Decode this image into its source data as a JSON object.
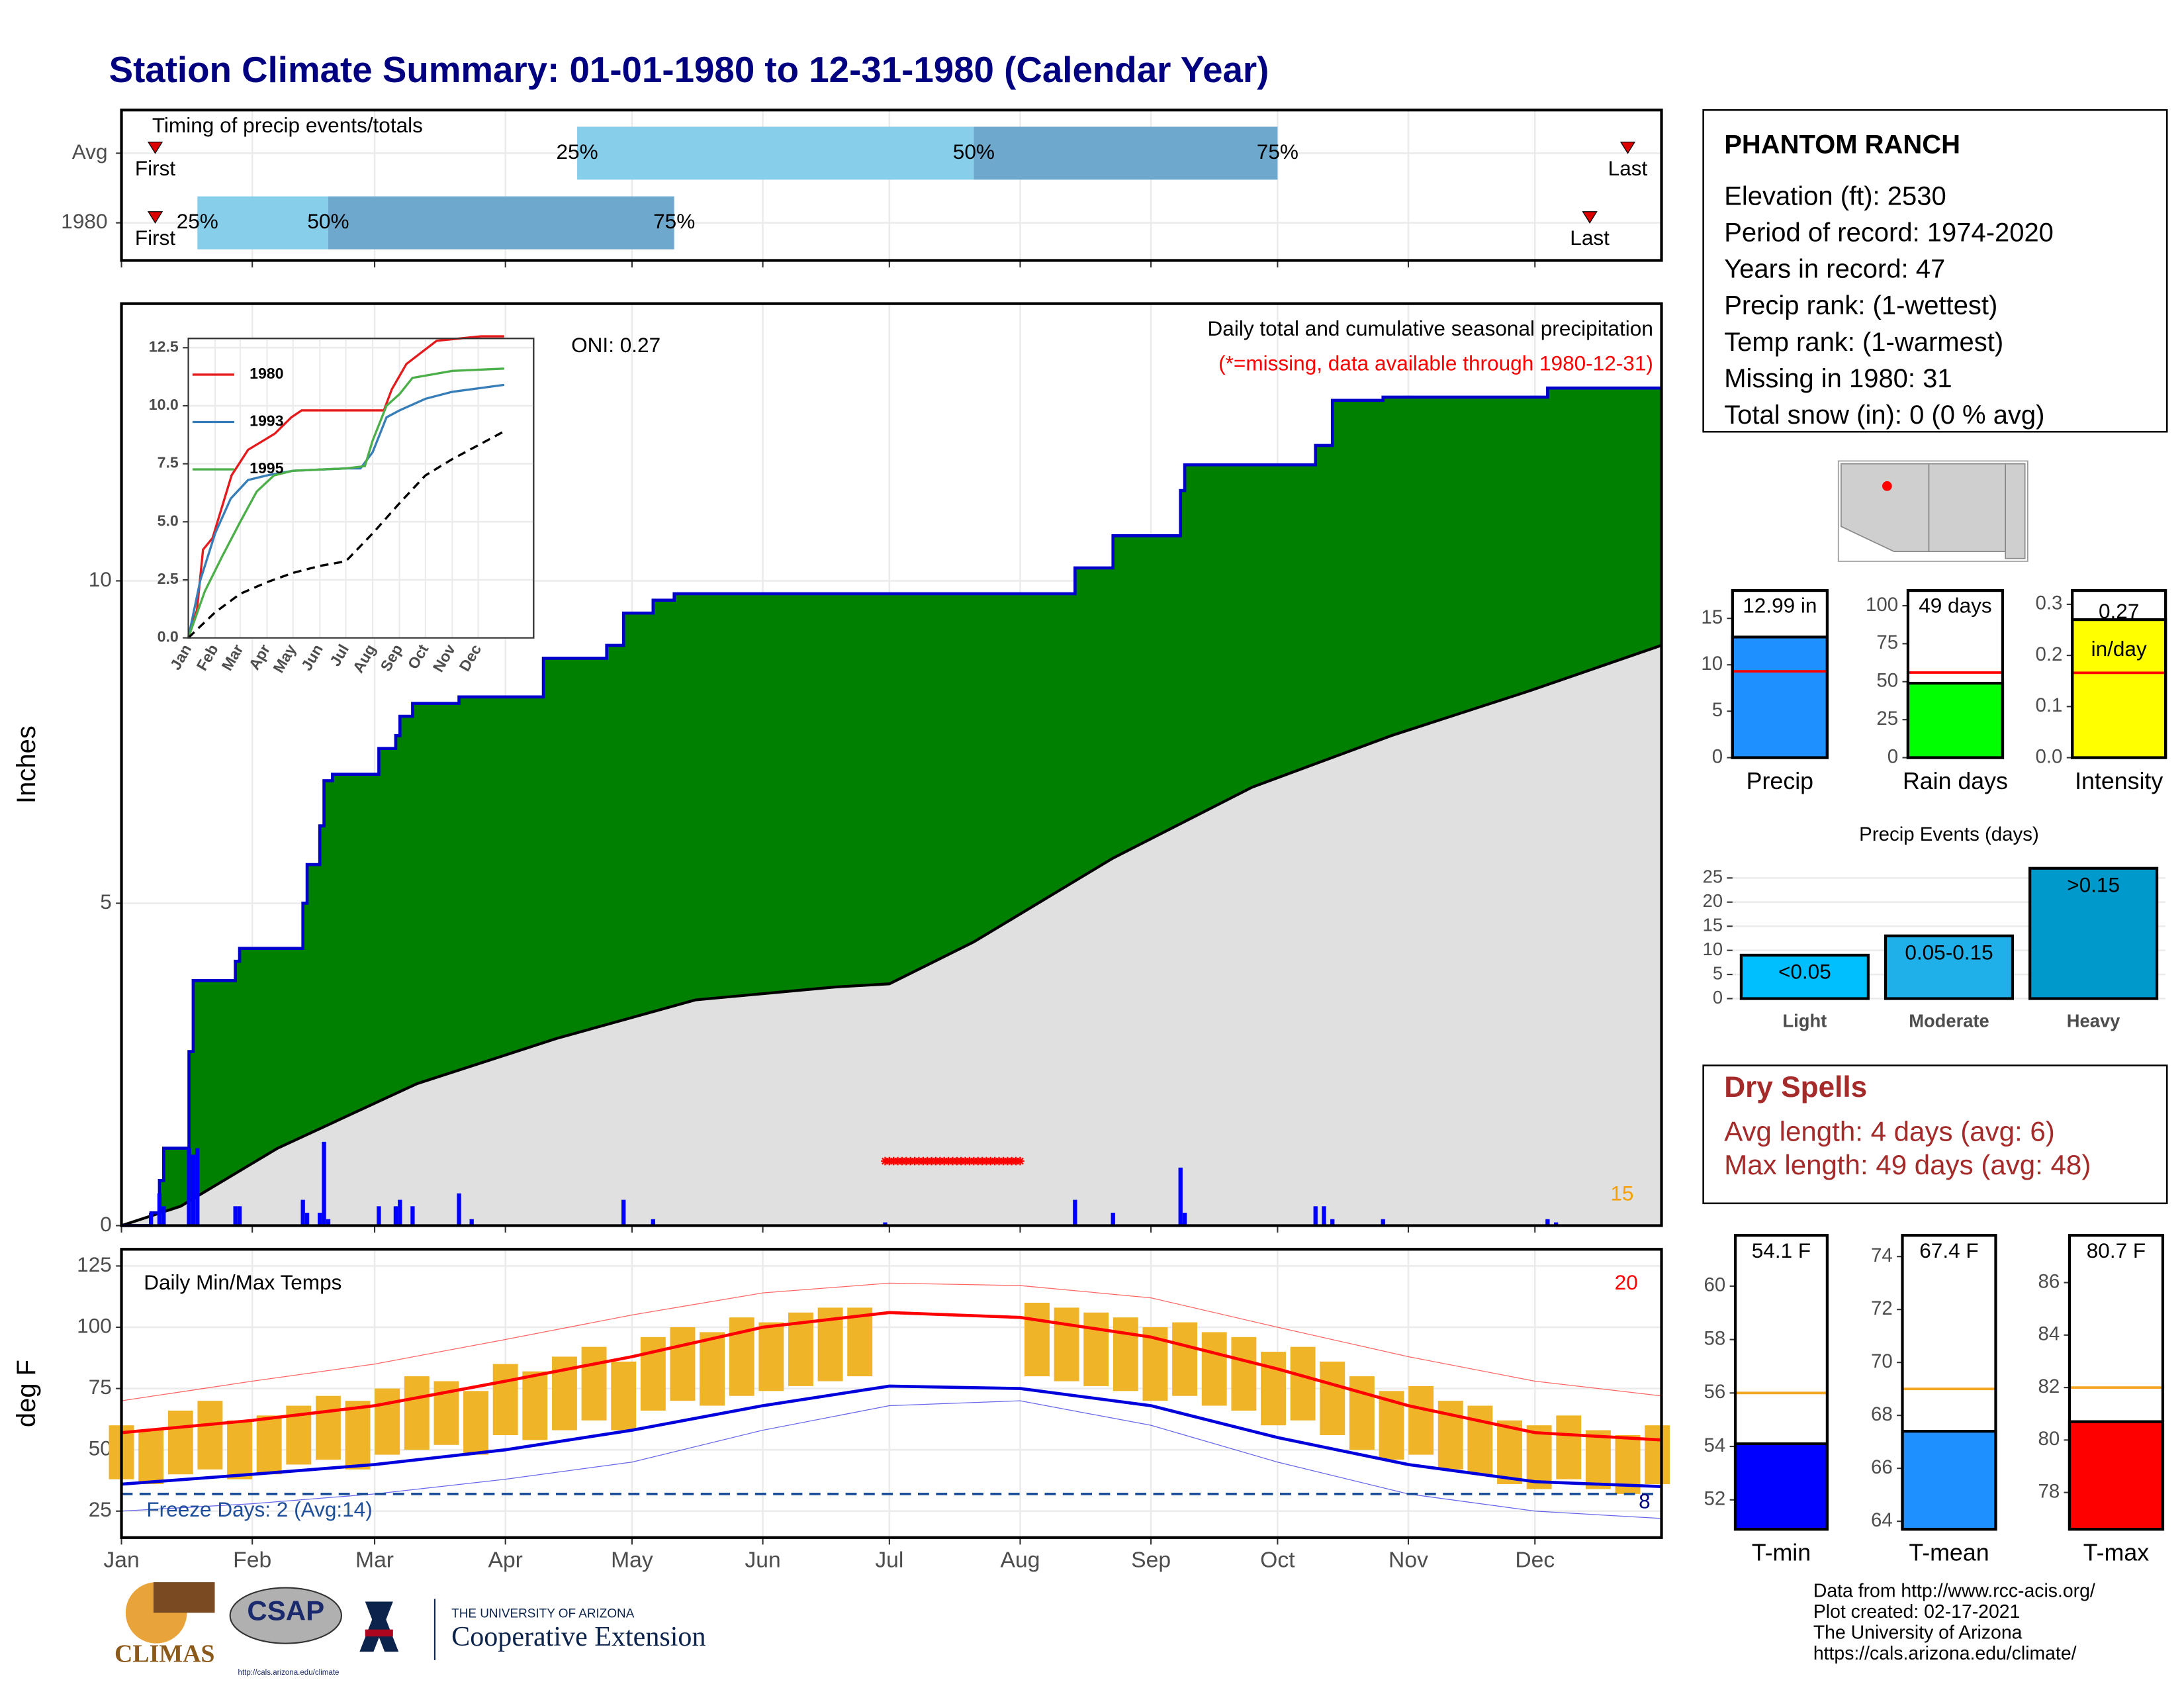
{
  "title": "Station Climate Summary: 01-01-1980 to 12-31-1980 (Calendar Year)",
  "station": {
    "name": "PHANTOM RANCH",
    "lines": [
      "Elevation (ft): 2530",
      "Period of record: 1974-2020",
      "Years in record: 47",
      "Precip rank:  (1-wettest)",
      "Temp rank:  (1-warmest)",
      "Missing in 1980: 31",
      "Total snow (in): 0 (0 % avg)"
    ]
  },
  "dry_spells": {
    "title": "Dry Spells",
    "lines": [
      "Avg length: 4 days (avg: 6)",
      "Max length: 49 days (avg: 48)"
    ]
  },
  "footer": [
    "Data from http://www.rcc-acis.org/",
    "Plot created: 02-17-2021",
    "The University of Arizona",
    "https://cals.arizona.edu/climate/"
  ],
  "logos": {
    "climas": "CLIMAS",
    "csap": "CSAP",
    "csap_url": "http://cals.arizona.edu/climate",
    "ua": "THE UNIVERSITY OF ARIZONA",
    "coop": "Cooperative Extension"
  },
  "chart_data": [
    {
      "type": "timing",
      "title": "Timing of precip events/totals",
      "categories": [
        "Avg",
        "1980"
      ],
      "series": [
        {
          "name": "First",
          "values": [
            9,
            9
          ]
        },
        {
          "name": "25%",
          "values": [
            109,
            19
          ]
        },
        {
          "name": "50%",
          "values": [
            203,
            50
          ]
        },
        {
          "name": "75%",
          "values": [
            275,
            132
          ]
        },
        {
          "name": "Last",
          "values": [
            358,
            349
          ]
        }
      ],
      "colors": [
        "#87ceeb",
        "#6fa8cd"
      ],
      "marker_color": "#dd0000",
      "xlim": [
        1,
        366
      ],
      "grid": true
    },
    {
      "type": "cumulative_precip",
      "title": "Daily total and cumulative seasonal precipitation",
      "subtitle": "(*=missing, data available through 1980-12-31)",
      "annotation": "ONI: 0.27",
      "count_label": "15",
      "ylabel": "Inches",
      "xlim": [
        1,
        366
      ],
      "ylim": [
        0,
        14.3
      ],
      "yticks": [
        0,
        5,
        10
      ],
      "grid": true,
      "cumulative": {
        "color": "#0000cd",
        "fill": "#008000",
        "x": [
          1,
          8,
          8,
          10,
          10,
          11,
          11,
          17,
          17,
          18,
          18,
          28,
          28,
          29,
          29,
          44,
          44,
          45,
          45,
          48,
          48,
          49,
          49,
          51,
          51,
          62,
          62,
          66,
          66,
          67,
          67,
          70,
          70,
          81,
          81,
          101,
          101,
          116,
          116,
          120,
          120,
          127,
          127,
          132,
          132,
          227,
          227,
          236,
          236,
          252,
          252,
          253,
          253,
          284,
          284,
          288,
          288,
          300,
          300,
          339,
          339,
          366
        ],
        "values": [
          0,
          0,
          0.2,
          0.2,
          0.7,
          0.7,
          1.2,
          1.2,
          2.7,
          2.7,
          3.8,
          3.8,
          4.1,
          4.1,
          4.3,
          4.3,
          5.0,
          5.0,
          5.6,
          5.6,
          6.2,
          6.2,
          6.9,
          6.9,
          7.0,
          7.0,
          7.4,
          7.4,
          7.6,
          7.6,
          7.9,
          7.9,
          8.1,
          8.1,
          8.2,
          8.2,
          8.8,
          8.8,
          9.0,
          9.0,
          9.5,
          9.5,
          9.7,
          9.7,
          9.8,
          9.8,
          10.2,
          10.2,
          10.7,
          10.7,
          11.4,
          11.4,
          11.8,
          11.8,
          12.1,
          12.1,
          12.8,
          12.8,
          12.85,
          12.85,
          12.99,
          12.99
        ]
      },
      "normal": {
        "color": "#000000",
        "fill": "#e0e0e0",
        "x": [
          1,
          15,
          38,
          71,
          104,
          137,
          170,
          183,
          203,
          236,
          269,
          302,
          335,
          366
        ],
        "values": [
          0,
          0.3,
          1.2,
          2.2,
          2.9,
          3.5,
          3.7,
          3.75,
          4.4,
          5.7,
          6.8,
          7.6,
          8.3,
          9.0
        ]
      },
      "daily": {
        "color": "#0000ff",
        "x": [
          8,
          10,
          11,
          17,
          18,
          19,
          28,
          29,
          44,
          45,
          48,
          49,
          50,
          62,
          66,
          67,
          70,
          81,
          84,
          120,
          127,
          182,
          227,
          236,
          252,
          253,
          284,
          286,
          288,
          300,
          339,
          341
        ],
        "values": [
          0.2,
          0.5,
          0.3,
          1.2,
          1.1,
          1.2,
          0.3,
          0.3,
          0.4,
          0.2,
          0.2,
          1.3,
          0.1,
          0.3,
          0.3,
          0.4,
          0.3,
          0.5,
          0.1,
          0.4,
          0.1,
          0.05,
          0.4,
          0.2,
          0.9,
          0.2,
          0.3,
          0.3,
          0.1,
          0.1,
          0.1,
          0.05
        ]
      },
      "missing": {
        "from": 182,
        "to": 214,
        "y": 1.0,
        "color": "#ff0000"
      }
    },
    {
      "type": "line",
      "xlim": [
        1,
        400
      ],
      "ylim": [
        0,
        12.9
      ],
      "yticks": [
        {
          "value": 0,
          "label": "0.0"
        },
        {
          "value": 2.5,
          "label": "2.5"
        },
        {
          "value": 5,
          "label": "5.0"
        },
        {
          "value": 7.5,
          "label": "7.5"
        },
        {
          "value": 10,
          "label": "10.0"
        },
        {
          "value": 12.5,
          "label": "12.5"
        }
      ],
      "xticks": [
        {
          "value": 1,
          "label": "Jan"
        },
        {
          "value": 32,
          "label": "Feb"
        },
        {
          "value": 61,
          "label": "Mar"
        },
        {
          "value": 92,
          "label": "Apr"
        },
        {
          "value": 122,
          "label": "May"
        },
        {
          "value": 153,
          "label": "Jun"
        },
        {
          "value": 183,
          "label": "Jul"
        },
        {
          "value": 214,
          "label": "Aug"
        },
        {
          "value": 245,
          "label": "Sep"
        },
        {
          "value": 275,
          "label": "Oct"
        },
        {
          "value": 306,
          "label": "Nov"
        },
        {
          "value": 336,
          "label": "Dec"
        }
      ],
      "grid": true,
      "series": [
        {
          "name": "1980",
          "color": "#e41a1c",
          "x": [
            1,
            11,
            18,
            29,
            51,
            70,
            101,
            120,
            132,
            227,
            236,
            253,
            288,
            339,
            366
          ],
          "values": [
            0,
            1.2,
            3.8,
            4.3,
            7.0,
            8.1,
            8.8,
            9.5,
            9.8,
            9.8,
            10.7,
            11.8,
            12.8,
            12.99,
            12.99
          ]
        },
        {
          "name": "1993",
          "color": "#377eb8",
          "x": [
            1,
            15,
            32,
            50,
            70,
            92,
            122,
            183,
            200,
            214,
            230,
            245,
            275,
            306,
            366
          ],
          "values": [
            0,
            2.5,
            4.5,
            6.0,
            6.8,
            7.0,
            7.2,
            7.3,
            7.3,
            8.0,
            9.5,
            9.8,
            10.3,
            10.6,
            10.9
          ]
        },
        {
          "name": "1995",
          "color": "#4daf4a",
          "x": [
            1,
            20,
            40,
            61,
            80,
            100,
            122,
            183,
            205,
            214,
            230,
            245,
            260,
            306,
            366
          ],
          "values": [
            0,
            2,
            3.5,
            5,
            6.3,
            7.0,
            7.2,
            7.3,
            7.4,
            8.5,
            10.0,
            10.5,
            11.2,
            11.5,
            11.6
          ]
        },
        {
          "color": "#000000",
          "dash": true,
          "x": [
            1,
            15,
            32,
            61,
            92,
            122,
            153,
            183,
            214,
            245,
            275,
            306,
            336,
            366
          ],
          "values": [
            0,
            0.5,
            1.1,
            1.9,
            2.4,
            2.8,
            3.1,
            3.3,
            4.5,
            5.8,
            7.0,
            7.7,
            8.3,
            8.9
          ]
        }
      ]
    },
    {
      "type": "temps",
      "title": "Daily Min/Max Temps",
      "ylabel": "deg F",
      "annotation": "Freeze Days: 2 (Avg:14)",
      "hot_count": "20",
      "freeze_count": "8",
      "xlim": [
        1,
        366
      ],
      "ylim": [
        14.2,
        131.8
      ],
      "yticks": [
        25,
        50,
        75,
        100,
        125
      ],
      "xticks": [
        {
          "value": 1,
          "label": "Jan"
        },
        {
          "value": 32,
          "label": "Feb"
        },
        {
          "value": 61,
          "label": "Mar"
        },
        {
          "value": 92,
          "label": "Apr"
        },
        {
          "value": 122,
          "label": "May"
        },
        {
          "value": 153,
          "label": "Jun"
        },
        {
          "value": 183,
          "label": "Jul"
        },
        {
          "value": 214,
          "label": "Aug"
        },
        {
          "value": 245,
          "label": "Sep"
        },
        {
          "value": 275,
          "label": "Oct"
        },
        {
          "value": 306,
          "label": "Nov"
        },
        {
          "value": 336,
          "label": "Dec"
        }
      ],
      "grid": true,
      "freeze_line": 32,
      "bar_color": "#f0b429",
      "days": [
        1,
        8,
        15,
        22,
        29,
        36,
        43,
        50,
        57,
        64,
        71,
        78,
        85,
        92,
        99,
        106,
        113,
        120,
        127,
        134,
        141,
        148,
        155,
        162,
        169,
        176,
        183,
        190,
        197,
        204,
        211,
        218,
        225,
        232,
        239,
        246,
        253,
        260,
        267,
        274,
        281,
        288,
        295,
        302,
        309,
        316,
        323,
        330,
        337,
        344,
        351,
        358,
        365
      ],
      "tmax": [
        60,
        58,
        66,
        70,
        62,
        64,
        68,
        72,
        70,
        75,
        80,
        78,
        74,
        85,
        82,
        88,
        92,
        86,
        96,
        100,
        98,
        104,
        102,
        106,
        108,
        108,
        null,
        null,
        null,
        null,
        null,
        110,
        108,
        106,
        104,
        100,
        102,
        98,
        96,
        90,
        92,
        86,
        80,
        74,
        76,
        70,
        68,
        62,
        60,
        64,
        58,
        56,
        60
      ],
      "tmin": [
        38,
        36,
        40,
        42,
        38,
        40,
        44,
        46,
        42,
        48,
        50,
        52,
        48,
        56,
        54,
        58,
        62,
        58,
        66,
        70,
        68,
        72,
        74,
        76,
        78,
        80,
        null,
        null,
        null,
        null,
        null,
        80,
        78,
        76,
        74,
        70,
        72,
        68,
        66,
        60,
        62,
        56,
        50,
        46,
        48,
        42,
        40,
        36,
        34,
        38,
        34,
        32,
        36
      ],
      "normal_x": [
        1,
        32,
        61,
        92,
        122,
        153,
        183,
        214,
        245,
        275,
        306,
        336,
        366
      ],
      "normal_max": [
        57,
        62,
        68,
        78,
        88,
        100,
        106,
        104,
        96,
        83,
        68,
        57,
        54
      ],
      "normal_max_color": "#ff0000",
      "normal_min": [
        36,
        40,
        44,
        50,
        58,
        68,
        76,
        75,
        68,
        55,
        44,
        37,
        35
      ],
      "normal_min_color": "#0000dd",
      "record_high": [
        70,
        78,
        85,
        95,
        105,
        114,
        118,
        117,
        112,
        100,
        88,
        78,
        72
      ],
      "record_low": [
        25,
        28,
        32,
        38,
        45,
        58,
        68,
        70,
        60,
        45,
        32,
        25,
        22
      ]
    },
    {
      "type": "summary_bar",
      "xlabel": "Precip",
      "values": [
        12.99
      ],
      "value_labels": [
        "12.99 in"
      ],
      "avg": 9.3,
      "avg_color": "#ff0000",
      "color": "#1e90ff",
      "ylim": [
        0,
        18
      ],
      "yticks": [
        0,
        5,
        10,
        15
      ]
    },
    {
      "type": "summary_bar",
      "xlabel": "Rain days",
      "values": [
        49
      ],
      "value_labels": [
        "49 days"
      ],
      "avg": 56,
      "avg_color": "#ff0000",
      "color": "#00ff00",
      "ylim": [
        0,
        110
      ],
      "yticks": [
        0,
        25,
        50,
        75,
        100
      ]
    },
    {
      "type": "summary_bar",
      "xlabel": "Intensity",
      "values": [
        0.27
      ],
      "value_labels": [
        "0.27"
      ],
      "unit": "in/day",
      "avg": 0.166,
      "avg_color": "#ff0000",
      "color": "#ffff00",
      "ylim": [
        0,
        0.327
      ],
      "yticks": [
        {
          "value": 0,
          "label": "0.0"
        },
        {
          "value": 0.1,
          "label": "0.1"
        },
        {
          "value": 0.2,
          "label": "0.2"
        },
        {
          "value": 0.3,
          "label": "0.3"
        }
      ]
    },
    {
      "type": "bar",
      "title": "Precip Events (days)",
      "categories": [
        "Light",
        "Moderate",
        "Heavy"
      ],
      "values": [
        9,
        13,
        27
      ],
      "bar_labels": [
        "<0.05",
        "0.05-0.15",
        ">0.15"
      ],
      "colors": [
        "#00bfff",
        "#1fb0ea",
        "#0099cc"
      ],
      "ylim": [
        0,
        28
      ],
      "yticks": [
        0,
        5,
        10,
        15,
        20,
        25
      ],
      "grid": true
    },
    {
      "type": "summary_bar",
      "xlabel": "T-min",
      "values": [
        54.1
      ],
      "value_labels": [
        "54.1 F"
      ],
      "avg": 56,
      "avg_color": "#f5a623",
      "color": "#0000ff",
      "ylim": [
        50.9,
        61.9
      ],
      "yticks": [
        52,
        54,
        56,
        58,
        60
      ]
    },
    {
      "type": "summary_bar",
      "xlabel": "T-mean",
      "values": [
        67.4
      ],
      "value_labels": [
        "67.4 F"
      ],
      "avg": 69,
      "avg_color": "#f5a623",
      "color": "#1e90ff",
      "ylim": [
        63.7,
        74.8
      ],
      "yticks": [
        64,
        66,
        68,
        70,
        72,
        74
      ]
    },
    {
      "type": "summary_bar",
      "xlabel": "T-max",
      "values": [
        80.7
      ],
      "value_labels": [
        "80.7 F"
      ],
      "avg": 82,
      "avg_color": "#f5a623",
      "color": "#ff0000",
      "ylim": [
        76.6,
        87.8
      ],
      "yticks": [
        78,
        80,
        82,
        84,
        86
      ]
    }
  ]
}
